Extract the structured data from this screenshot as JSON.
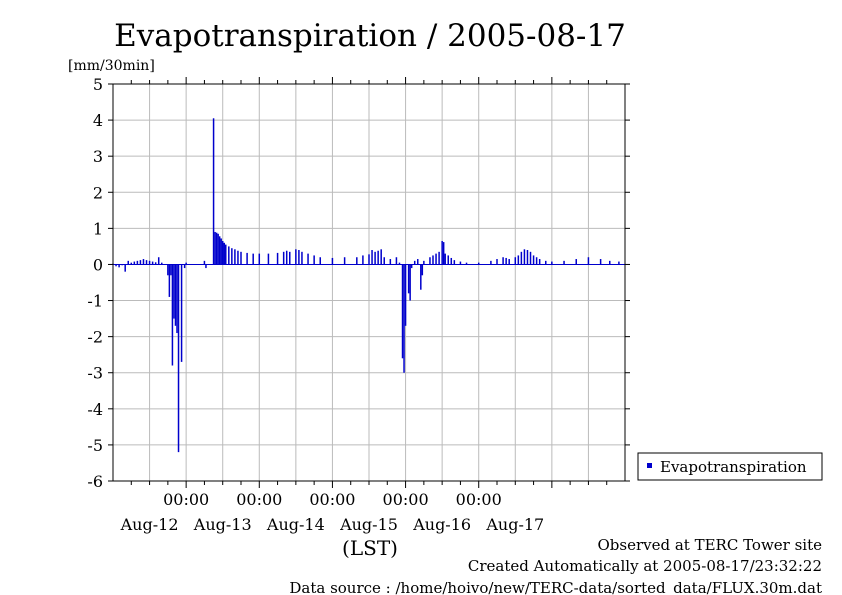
{
  "chart_data": {
    "type": "bar",
    "title": "Evapotranspiration / 2005-08-17",
    "ylabel": "[mm/30min]",
    "xlabel": "(LST)",
    "ylim": [
      -6,
      5
    ],
    "yticks": [
      "5",
      "4",
      "3",
      "2",
      "1",
      "0",
      "-1",
      "-2",
      "-3",
      "-4",
      "-5",
      "-6"
    ],
    "xlim": [
      "2005-08-11 00:00",
      "2005-08-18 00:00"
    ],
    "time_ticks": [
      "00:00",
      "00:00",
      "00:00",
      "00:00",
      "00:00"
    ],
    "date_labels": [
      "Aug-12",
      "Aug-13",
      "Aug-14",
      "Aug-15",
      "Aug-16",
      "Aug-17"
    ],
    "grid": true,
    "legend_position": "right",
    "series": [
      {
        "name": "Evapotranspiration",
        "color": "#0000cc",
        "values": [
          [
            "2005-08-11 00:00",
            0.02
          ],
          [
            "2005-08-11 01:00",
            -0.05
          ],
          [
            "2005-08-11 02:00",
            -0.08
          ],
          [
            "2005-08-11 03:00",
            -0.02
          ],
          [
            "2005-08-11 04:00",
            -0.2
          ],
          [
            "2005-08-11 05:00",
            0.1
          ],
          [
            "2005-08-11 06:00",
            0.05
          ],
          [
            "2005-08-11 07:00",
            0.08
          ],
          [
            "2005-08-11 08:00",
            0.1
          ],
          [
            "2005-08-11 09:00",
            0.12
          ],
          [
            "2005-08-11 10:00",
            0.15
          ],
          [
            "2005-08-11 11:00",
            0.12
          ],
          [
            "2005-08-11 12:00",
            0.1
          ],
          [
            "2005-08-11 13:00",
            0.08
          ],
          [
            "2005-08-11 14:00",
            0.06
          ],
          [
            "2005-08-11 15:00",
            0.2
          ],
          [
            "2005-08-11 16:00",
            0.05
          ],
          [
            "2005-08-11 18:00",
            -0.3
          ],
          [
            "2005-08-11 18:30",
            -0.9
          ],
          [
            "2005-08-11 19:00",
            -0.3
          ],
          [
            "2005-08-11 19:30",
            -2.8
          ],
          [
            "2005-08-11 20:00",
            -1.5
          ],
          [
            "2005-08-11 20:30",
            -1.7
          ],
          [
            "2005-08-11 21:00",
            -1.9
          ],
          [
            "2005-08-11 21:30",
            -5.2
          ],
          [
            "2005-08-11 22:30",
            -2.7
          ],
          [
            "2005-08-11 23:30",
            -0.1
          ],
          [
            "2005-08-12 00:00",
            0.05
          ],
          [
            "2005-08-12 06:00",
            0.1
          ],
          [
            "2005-08-12 06:30",
            -0.1
          ],
          [
            "2005-08-12 09:00",
            4.05
          ],
          [
            "2005-08-12 09:30",
            0.9
          ],
          [
            "2005-08-12 10:00",
            0.88
          ],
          [
            "2005-08-12 10:30",
            0.85
          ],
          [
            "2005-08-12 11:00",
            0.78
          ],
          [
            "2005-08-12 11:30",
            0.72
          ],
          [
            "2005-08-12 12:00",
            0.65
          ],
          [
            "2005-08-12 12:30",
            0.6
          ],
          [
            "2005-08-12 13:00",
            0.55
          ],
          [
            "2005-08-12 14:00",
            0.5
          ],
          [
            "2005-08-12 15:00",
            0.45
          ],
          [
            "2005-08-12 16:00",
            0.42
          ],
          [
            "2005-08-12 17:00",
            0.38
          ],
          [
            "2005-08-12 18:00",
            0.35
          ],
          [
            "2005-08-12 20:00",
            0.32
          ],
          [
            "2005-08-12 22:00",
            0.3
          ],
          [
            "2005-08-13 00:00",
            0.3
          ],
          [
            "2005-08-13 03:00",
            0.3
          ],
          [
            "2005-08-13 06:00",
            0.32
          ],
          [
            "2005-08-13 08:00",
            0.35
          ],
          [
            "2005-08-13 09:00",
            0.38
          ],
          [
            "2005-08-13 10:00",
            0.35
          ],
          [
            "2005-08-13 12:00",
            0.42
          ],
          [
            "2005-08-13 13:00",
            0.4
          ],
          [
            "2005-08-13 14:00",
            0.35
          ],
          [
            "2005-08-13 16:00",
            0.3
          ],
          [
            "2005-08-13 18:00",
            0.25
          ],
          [
            "2005-08-13 20:00",
            0.2
          ],
          [
            "2005-08-14 00:00",
            0.18
          ],
          [
            "2005-08-14 04:00",
            0.2
          ],
          [
            "2005-08-14 08:00",
            0.2
          ],
          [
            "2005-08-14 10:00",
            0.25
          ],
          [
            "2005-08-14 12:00",
            0.28
          ],
          [
            "2005-08-14 13:00",
            0.4
          ],
          [
            "2005-08-14 14:00",
            0.35
          ],
          [
            "2005-08-14 15:00",
            0.38
          ],
          [
            "2005-08-14 16:00",
            0.42
          ],
          [
            "2005-08-14 17:00",
            0.2
          ],
          [
            "2005-08-14 19:00",
            0.15
          ],
          [
            "2005-08-14 21:00",
            0.2
          ],
          [
            "2005-08-14 22:00",
            0.05
          ],
          [
            "2005-08-14 23:00",
            -2.6
          ],
          [
            "2005-08-14 23:30",
            -3.0
          ],
          [
            "2005-08-15 00:00",
            -1.7
          ],
          [
            "2005-08-15 01:00",
            -0.8
          ],
          [
            "2005-08-15 01:30",
            -1.0
          ],
          [
            "2005-08-15 02:00",
            -0.1
          ],
          [
            "2005-08-15 03:00",
            0.1
          ],
          [
            "2005-08-15 04:00",
            0.15
          ],
          [
            "2005-08-15 05:00",
            -0.7
          ],
          [
            "2005-08-15 05:30",
            -0.3
          ],
          [
            "2005-08-15 06:00",
            0.1
          ],
          [
            "2005-08-15 08:00",
            0.2
          ],
          [
            "2005-08-15 09:00",
            0.25
          ],
          [
            "2005-08-15 10:00",
            0.3
          ],
          [
            "2005-08-15 11:00",
            0.35
          ],
          [
            "2005-08-15 12:00",
            0.65
          ],
          [
            "2005-08-15 12:30",
            0.62
          ],
          [
            "2005-08-15 13:00",
            0.3
          ],
          [
            "2005-08-15 14:00",
            0.25
          ],
          [
            "2005-08-15 15:00",
            0.18
          ],
          [
            "2005-08-15 16:00",
            0.12
          ],
          [
            "2005-08-15 18:00",
            0.08
          ],
          [
            "2005-08-15 20:00",
            0.05
          ],
          [
            "2005-08-16 00:00",
            0.05
          ],
          [
            "2005-08-16 04:00",
            0.1
          ],
          [
            "2005-08-16 06:00",
            0.15
          ],
          [
            "2005-08-16 08:00",
            0.2
          ],
          [
            "2005-08-16 09:00",
            0.18
          ],
          [
            "2005-08-16 10:00",
            0.15
          ],
          [
            "2005-08-16 12:00",
            0.2
          ],
          [
            "2005-08-16 13:00",
            0.25
          ],
          [
            "2005-08-16 14:00",
            0.35
          ],
          [
            "2005-08-16 15:00",
            0.42
          ],
          [
            "2005-08-16 16:00",
            0.4
          ],
          [
            "2005-08-16 17:00",
            0.35
          ],
          [
            "2005-08-16 18:00",
            0.25
          ],
          [
            "2005-08-16 19:00",
            0.2
          ],
          [
            "2005-08-16 20:00",
            0.15
          ],
          [
            "2005-08-16 22:00",
            0.1
          ],
          [
            "2005-08-17 00:00",
            0.08
          ],
          [
            "2005-08-17 04:00",
            0.1
          ],
          [
            "2005-08-17 08:00",
            0.15
          ],
          [
            "2005-08-17 12:00",
            0.2
          ],
          [
            "2005-08-17 16:00",
            0.15
          ],
          [
            "2005-08-17 19:00",
            0.1
          ],
          [
            "2005-08-17 22:00",
            0.08
          ]
        ]
      }
    ]
  },
  "footer": {
    "line1": "Observed at TERC Tower site",
    "line2": "Created Automatically at 2005-08-17/23:32:22",
    "line3": "Data source : /home/hoivo/new/TERC-data/sorted_data/FLUX.30m.dat"
  }
}
